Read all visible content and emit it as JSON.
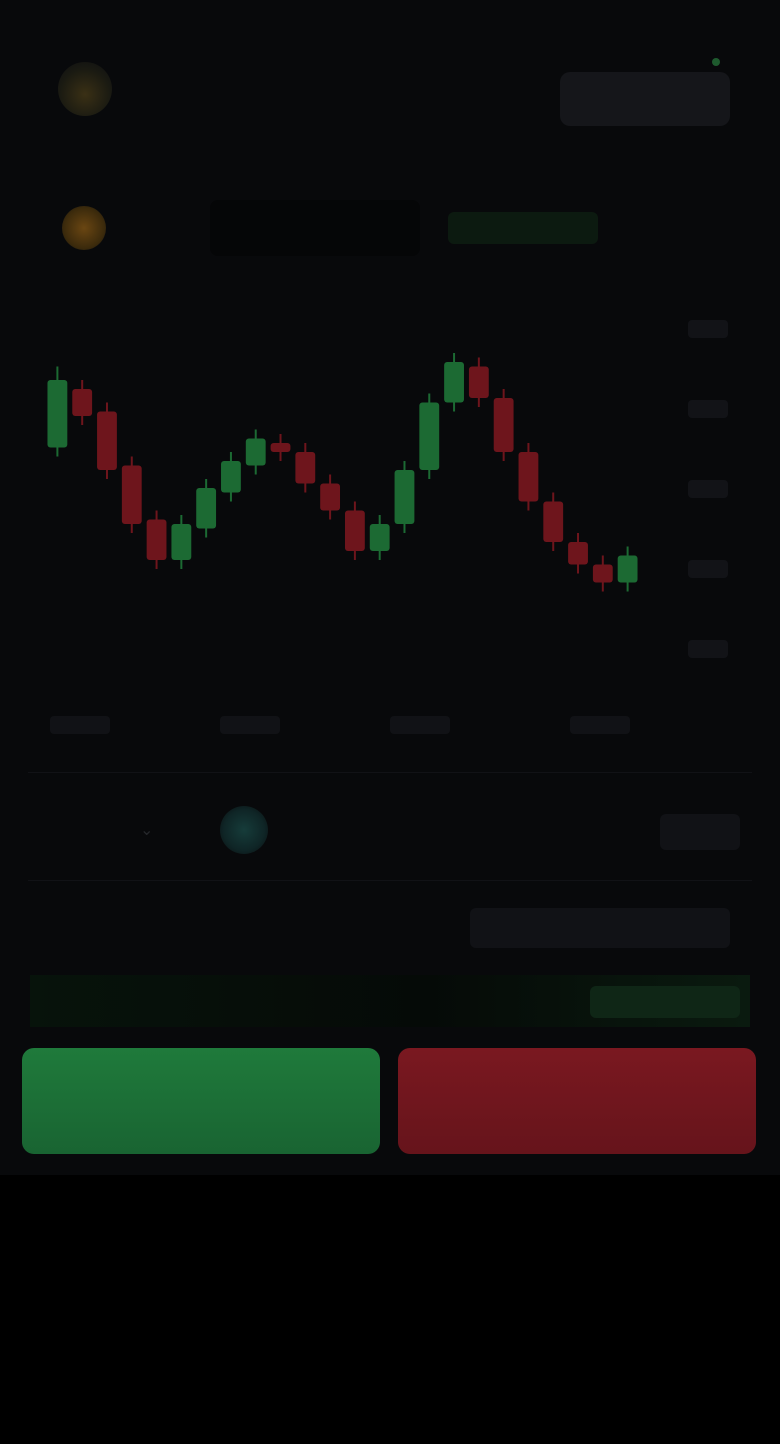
{
  "header": {
    "brand_name": "",
    "brand_sub": "",
    "wallet": ""
  },
  "pair": {
    "label": "",
    "change": "",
    "timeframe": ""
  },
  "trade": {
    "amount_label": "",
    "asset_label": "",
    "amount_right": "",
    "row_label": "",
    "row_value": "",
    "profit_label": "",
    "profit_value": ""
  },
  "actions": {
    "buy_label": "",
    "sell_label": ""
  },
  "footer": {
    "note": ""
  },
  "colors": {
    "up": "#1f7a3b",
    "down": "#7a1820",
    "background": "#08090b"
  },
  "icons": {
    "logo": "app-logo-icon",
    "coin": "coin-icon",
    "asset": "asset-icon"
  },
  "chart_data": {
    "type": "candlestick",
    "title": "",
    "xlabel": "",
    "ylabel": "",
    "grid": false,
    "candles": [
      {
        "o": 45,
        "c": 60,
        "h": 63,
        "l": 43
      },
      {
        "o": 58,
        "c": 52,
        "h": 60,
        "l": 50
      },
      {
        "o": 53,
        "c": 40,
        "h": 55,
        "l": 38
      },
      {
        "o": 41,
        "c": 28,
        "h": 43,
        "l": 26
      },
      {
        "o": 29,
        "c": 20,
        "h": 31,
        "l": 18
      },
      {
        "o": 20,
        "c": 28,
        "h": 30,
        "l": 18
      },
      {
        "o": 27,
        "c": 36,
        "h": 38,
        "l": 25
      },
      {
        "o": 35,
        "c": 42,
        "h": 44,
        "l": 33
      },
      {
        "o": 41,
        "c": 47,
        "h": 49,
        "l": 39
      },
      {
        "o": 46,
        "c": 44,
        "h": 48,
        "l": 42
      },
      {
        "o": 44,
        "c": 37,
        "h": 46,
        "l": 35
      },
      {
        "o": 37,
        "c": 31,
        "h": 39,
        "l": 29
      },
      {
        "o": 31,
        "c": 22,
        "h": 33,
        "l": 20
      },
      {
        "o": 22,
        "c": 28,
        "h": 30,
        "l": 20
      },
      {
        "o": 28,
        "c": 40,
        "h": 42,
        "l": 26
      },
      {
        "o": 40,
        "c": 55,
        "h": 57,
        "l": 38
      },
      {
        "o": 55,
        "c": 64,
        "h": 66,
        "l": 53
      },
      {
        "o": 63,
        "c": 56,
        "h": 65,
        "l": 54
      },
      {
        "o": 56,
        "c": 44,
        "h": 58,
        "l": 42
      },
      {
        "o": 44,
        "c": 33,
        "h": 46,
        "l": 31
      },
      {
        "o": 33,
        "c": 24,
        "h": 35,
        "l": 22
      },
      {
        "o": 24,
        "c": 19,
        "h": 26,
        "l": 17
      },
      {
        "o": 19,
        "c": 15,
        "h": 21,
        "l": 13
      },
      {
        "o": 15,
        "c": 21,
        "h": 23,
        "l": 13
      }
    ],
    "ylim": [
      0,
      80
    ]
  }
}
